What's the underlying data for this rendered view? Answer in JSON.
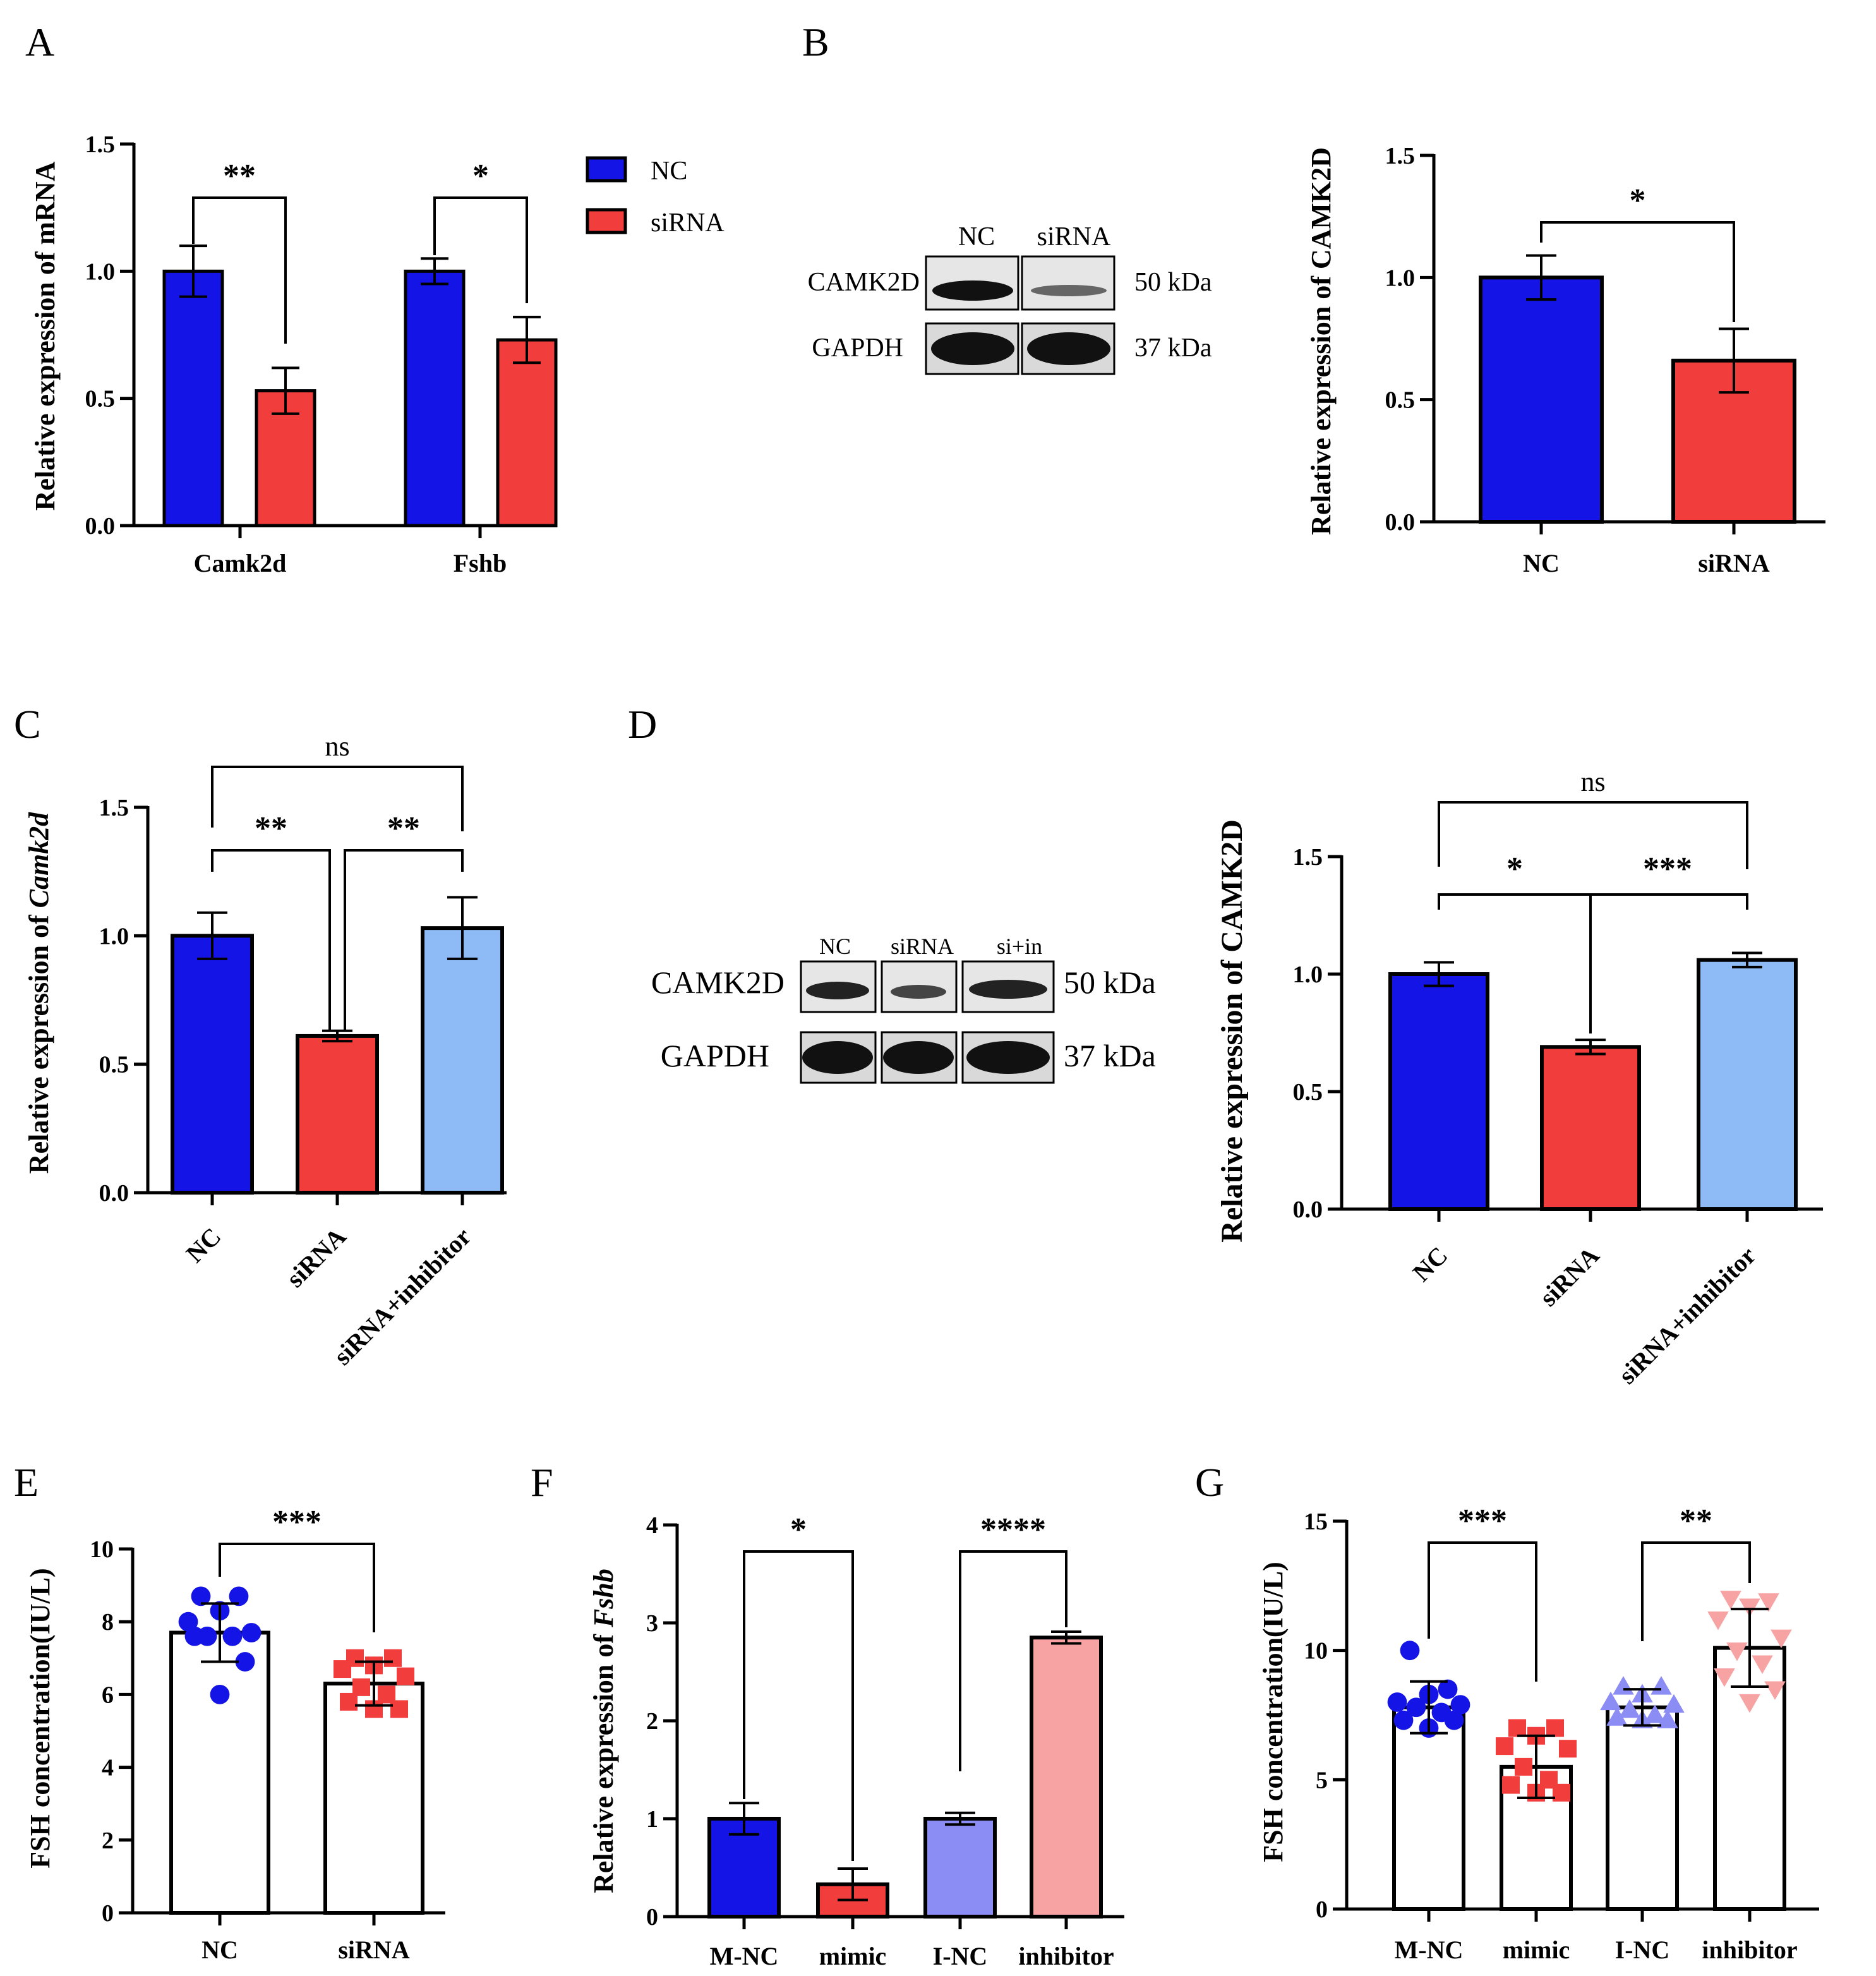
{
  "colors": {
    "blue": "#1414E6",
    "red": "#F23D3D",
    "lightblue": "#8EBBF5",
    "lavender": "#8C8CF5",
    "pink": "#F7A3A3",
    "white": "#FFFFFF",
    "black": "#000000"
  },
  "chart_data": [
    {
      "panel": "A",
      "type": "bar",
      "ylabel": "Relative expression of mRNA",
      "categories": [
        "Camk2d",
        "Fshb"
      ],
      "ylim": [
        0,
        1.5
      ],
      "yticks": [
        "0.0",
        "0.5",
        "1.0",
        "1.5"
      ],
      "legend": [
        "NC",
        "siRNA"
      ],
      "series": [
        {
          "name": "NC",
          "values": [
            1.0,
            1.0
          ],
          "errors": [
            0.1,
            0.05
          ],
          "color": "blue"
        },
        {
          "name": "siRNA",
          "values": [
            0.53,
            0.73
          ],
          "errors": [
            0.09,
            0.09
          ],
          "color": "red"
        }
      ],
      "annotations": [
        "**",
        "*"
      ]
    },
    {
      "panel": "B",
      "type": "bar",
      "ylabel": "Relative expression of CAMK2D",
      "categories": [
        "NC",
        "siRNA"
      ],
      "ylim": [
        0,
        1.5
      ],
      "yticks": [
        "0.0",
        "0.5",
        "1.0",
        "1.5"
      ],
      "values": [
        1.0,
        0.66
      ],
      "errors": [
        0.09,
        0.13
      ],
      "colors": [
        "blue",
        "red"
      ],
      "annotations": [
        "*"
      ],
      "blot": {
        "lanes": [
          "NC",
          "siRNA"
        ],
        "proteins": [
          "CAMK2D",
          "GAPDH"
        ],
        "weights": [
          "50 kDa",
          "37 kDa"
        ]
      }
    },
    {
      "panel": "C",
      "type": "bar",
      "ylabel_prefix": "Relative expression of ",
      "ylabel_gene": "Camk2d",
      "categories": [
        "NC",
        "siRNA",
        "siRNA+inhibitor"
      ],
      "ylim": [
        0,
        1.5
      ],
      "yticks": [
        "0.0",
        "0.5",
        "1.0",
        "1.5"
      ],
      "values": [
        1.0,
        0.61,
        1.03
      ],
      "errors": [
        0.09,
        0.02,
        0.12
      ],
      "colors": [
        "blue",
        "red",
        "lightblue"
      ],
      "annotations": [
        "ns",
        "**",
        "**"
      ]
    },
    {
      "panel": "D",
      "type": "bar",
      "ylabel": "Relative expression of CAMK2D",
      "categories": [
        "NC",
        "siRNA",
        "siRNA+inhibitor"
      ],
      "ylim": [
        0,
        1.5
      ],
      "yticks": [
        "0.0",
        "0.5",
        "1.0",
        "1.5"
      ],
      "values": [
        1.0,
        0.69,
        1.06
      ],
      "errors": [
        0.05,
        0.03,
        0.03
      ],
      "colors": [
        "blue",
        "red",
        "lightblue"
      ],
      "annotations": [
        "ns",
        "*",
        "***"
      ],
      "blot": {
        "lanes": [
          "NC",
          "siRNA",
          "si+in"
        ],
        "proteins": [
          "CAMK2D",
          "GAPDH"
        ],
        "weights": [
          "50 kDa",
          "37 kDa"
        ]
      }
    },
    {
      "panel": "E",
      "type": "scatter",
      "ylabel": "FSH concentration(IU/L)",
      "categories": [
        "NC",
        "siRNA"
      ],
      "ylim": [
        0,
        10
      ],
      "yticks": [
        "0",
        "2",
        "4",
        "6",
        "8",
        "10"
      ],
      "means": [
        7.7,
        6.3
      ],
      "errors": [
        0.8,
        0.6
      ],
      "points": [
        [
          8.7,
          8.7,
          8.3,
          8.0,
          7.7,
          7.6,
          7.6,
          7.6,
          6.9,
          6.0
        ],
        [
          7.0,
          7.0,
          6.8,
          6.7,
          6.5,
          6.2,
          6.0,
          5.8,
          5.6,
          5.6
        ]
      ],
      "markers": [
        "circle",
        "square"
      ],
      "marker_colors": [
        "blue",
        "red"
      ],
      "annotations": [
        "***"
      ]
    },
    {
      "panel": "F",
      "type": "bar",
      "ylabel_prefix": "Relative expression of ",
      "ylabel_gene": "Fshb",
      "categories": [
        "M-NC",
        "mimic",
        "I-NC",
        "inhibitor"
      ],
      "ylim": [
        0,
        4
      ],
      "yticks": [
        "0",
        "1",
        "2",
        "3",
        "4"
      ],
      "values": [
        1.0,
        0.33,
        1.0,
        2.85
      ],
      "errors": [
        0.16,
        0.16,
        0.06,
        0.06
      ],
      "colors": [
        "blue",
        "red",
        "lavender",
        "pink"
      ],
      "annotations": [
        "*",
        "****"
      ]
    },
    {
      "panel": "G",
      "type": "scatter",
      "ylabel": "FSH concentration(IU/L)",
      "categories": [
        "M-NC",
        "mimic",
        "I-NC",
        "inhibitor"
      ],
      "ylim": [
        0,
        15
      ],
      "yticks": [
        "0",
        "5",
        "10",
        "15"
      ],
      "means": [
        7.8,
        5.5,
        7.8,
        10.1
      ],
      "errors": [
        1.0,
        1.2,
        0.7,
        1.5
      ],
      "points": [
        [
          10.0,
          8.5,
          8.3,
          8.0,
          7.9,
          7.8,
          7.6,
          7.3,
          7.3,
          7.0
        ],
        [
          7.0,
          7.0,
          6.7,
          6.3,
          6.2,
          5.5,
          5.0,
          4.8,
          4.5,
          4.5
        ],
        [
          8.6,
          8.6,
          8.3,
          8.0,
          7.9,
          7.7,
          7.5,
          7.4,
          7.3,
          7.3
        ],
        [
          12.0,
          11.9,
          11.7,
          11.2,
          10.5,
          10.0,
          9.5,
          9.0,
          8.5,
          8.0
        ]
      ],
      "markers": [
        "circle",
        "square",
        "triangle-up",
        "triangle-down"
      ],
      "marker_colors": [
        "blue",
        "red",
        "lavender",
        "pink"
      ],
      "annotations": [
        "***",
        "**"
      ]
    }
  ]
}
